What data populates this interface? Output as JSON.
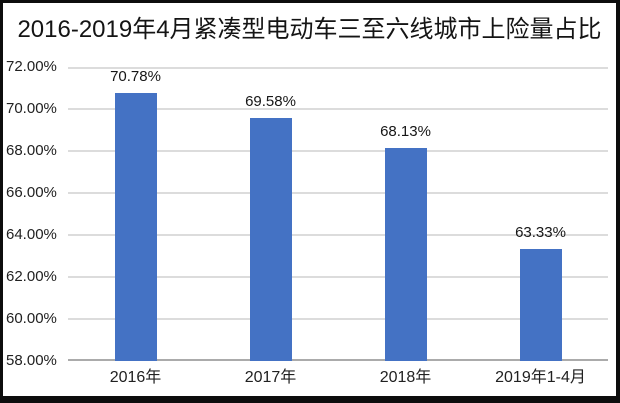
{
  "chart_data": {
    "type": "bar",
    "title": "2016-2019年4月紧凑型电动车三至六线城市上险量占比",
    "categories": [
      "2016年",
      "2017年",
      "2018年",
      "2019年1-4月"
    ],
    "values": [
      70.78,
      69.58,
      68.13,
      63.33
    ],
    "value_labels": [
      "70.78%",
      "69.58%",
      "68.13%",
      "63.33%"
    ],
    "ytick_labels": [
      "72.00%",
      "70.00%",
      "68.00%",
      "66.00%",
      "64.00%",
      "62.00%",
      "60.00%",
      "58.00%"
    ],
    "ylim": [
      58,
      72
    ],
    "ytick_step": 2,
    "xlabel": "",
    "ylabel": "",
    "grid": true,
    "legend": false,
    "bar_color": "#4472c4",
    "gridline_color": "#dcdcdc",
    "axis_line_color": "#ababab",
    "frame_color": "#0d0d0d",
    "background_color": "#ffffff"
  }
}
